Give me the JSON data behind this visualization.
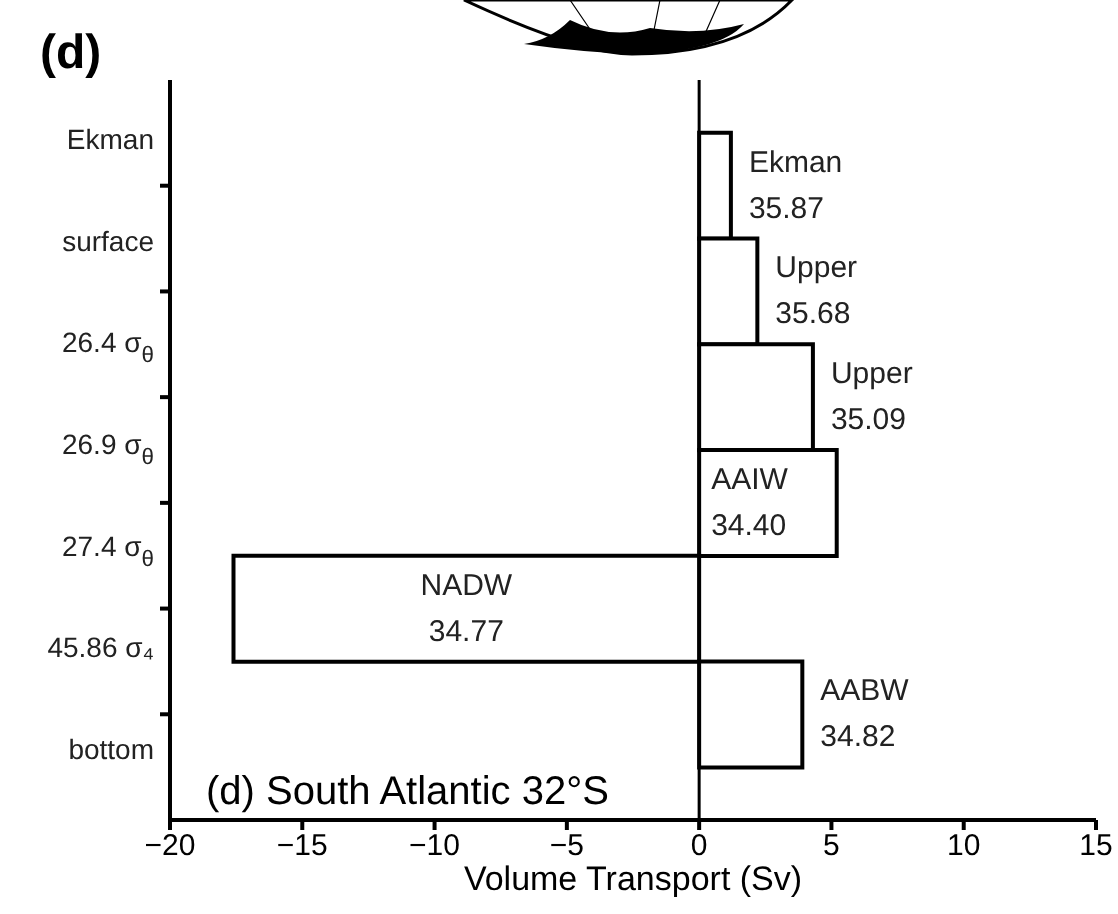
{
  "chart_data": {
    "type": "bar",
    "orientation": "horizontal",
    "tick_labels": "x",
    "categories": [
      null,
      null,
      null,
      null,
      null,
      null
    ],
    "values": [
      1.2,
      2.2,
      4.3,
      5.2,
      -17.6,
      3.9
    ],
    "color": "#ffffff",
    "xlim": [
      -20,
      15
    ],
    "xticks": [
      {
        "value": -20,
        "label": "−20"
      },
      {
        "value": -15,
        "label": "−15"
      },
      {
        "value": -10,
        "label": "−10"
      },
      {
        "value": -5,
        "label": "−5"
      },
      0,
      5,
      10,
      15
    ],
    "xlabel": "Volume Transport (Sv)",
    "ref_lines": [
      {
        "axis": "x",
        "value": 0
      }
    ],
    "annotations": [
      "(d)",
      "(d) South Atlantic 32°S",
      "Ekman",
      "surface",
      "26.4 σ$_{θ}$",
      "26.9 σ$_{θ}$",
      "27.4 σ$_{θ}$",
      "45.86 σ₄",
      "bottom",
      "Ekman",
      "35.87",
      "Upper",
      "35.68",
      "Upper",
      "35.09",
      "AAIW",
      "34.40",
      "NADW",
      "34.77",
      "AABW",
      "34.82"
    ]
  }
}
